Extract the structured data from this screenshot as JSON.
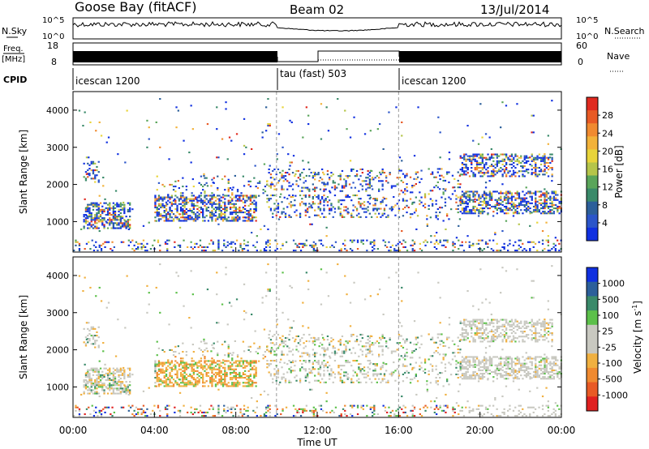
{
  "header": {
    "station": "Goose Bay (fitACF)",
    "beam": "Beam 02",
    "date": "13/Jul/2014"
  },
  "top_panels": {
    "nsky": {
      "label": "N.Sky",
      "tick_hi": "10^5",
      "tick_lo": "10^0",
      "right_label": "N.Search",
      "right_tick_hi": "10^5",
      "right_tick_lo": "10^0"
    },
    "freq": {
      "label_line1": "Freq.",
      "label_line2": "[MHz]",
      "tick_hi": "18",
      "tick_lo": "8",
      "right_label": "Nave",
      "right_tick_hi": "60",
      "right_tick_lo": "0"
    },
    "cpid": {
      "label": "CPID"
    }
  },
  "colors": {
    "power_scale": [
      "#1030e0",
      "#2b55c9",
      "#2c5f9a",
      "#3a8a6a",
      "#5aa55a",
      "#b5c54a",
      "#e8d43a",
      "#f2b23a",
      "#f08a30",
      "#e85a25",
      "#e02a20"
    ],
    "velocity_scale": [
      "#1030e0",
      "#2c5f9a",
      "#3a8a6a",
      "#5cc04a",
      "#c8c8c0",
      "#c8c8c0",
      "#f0b040",
      "#f08a30",
      "#e85a25",
      "#e02020"
    ]
  },
  "chart_data": [
    {
      "type": "line",
      "name": "noise_and_frequency_panels",
      "x": [
        "00:00",
        "04:00",
        "08:00",
        "12:00",
        "16:00",
        "20:00",
        "00:00"
      ],
      "series": [
        {
          "name": "N.Sky"
        },
        {
          "name": "N.Search"
        },
        {
          "name": "Freq."
        },
        {
          "name": "Nave"
        }
      ]
    },
    {
      "type": "table",
      "name": "cpid_segments",
      "segments": [
        {
          "label": "icescan 1200",
          "start_hour": 0,
          "end_hour": 10
        },
        {
          "label": "tau (fast) 503",
          "start_hour": 10,
          "end_hour": 16
        },
        {
          "label": "icescan 1200",
          "start_hour": 16,
          "end_hour": 24
        }
      ]
    },
    {
      "type": "heatmap",
      "name": "power",
      "xlabel": "",
      "ylabel": "Slant Range [km]",
      "xlim": [
        0,
        24
      ],
      "ylim": [
        180,
        4500
      ],
      "y_ticks": [
        "1000",
        "2000",
        "3000",
        "4000"
      ],
      "colorbar_label": "Power [dB]",
      "colorbar_ticks": [
        "4",
        "8",
        "12",
        "16",
        "20",
        "24",
        "28"
      ]
    },
    {
      "type": "heatmap",
      "name": "velocity",
      "xlabel": "Time UT",
      "ylabel": "Slant Range [km]",
      "xlim": [
        0,
        24
      ],
      "ylim": [
        180,
        4500
      ],
      "x_ticks": [
        "00:00",
        "04:00",
        "08:00",
        "12:00",
        "16:00",
        "20:00",
        "00:00"
      ],
      "y_ticks": [
        "1000",
        "2000",
        "3000",
        "4000"
      ],
      "colorbar_label": "Velocity [m s-1]",
      "colorbar_label_main": "Velocity [m s",
      "colorbar_label_sup": "-1",
      "colorbar_label_tail": "]",
      "colorbar_ticks": [
        "1000",
        "500",
        "100",
        "25",
        "-25",
        "-100",
        "-500",
        "-1000"
      ]
    }
  ]
}
